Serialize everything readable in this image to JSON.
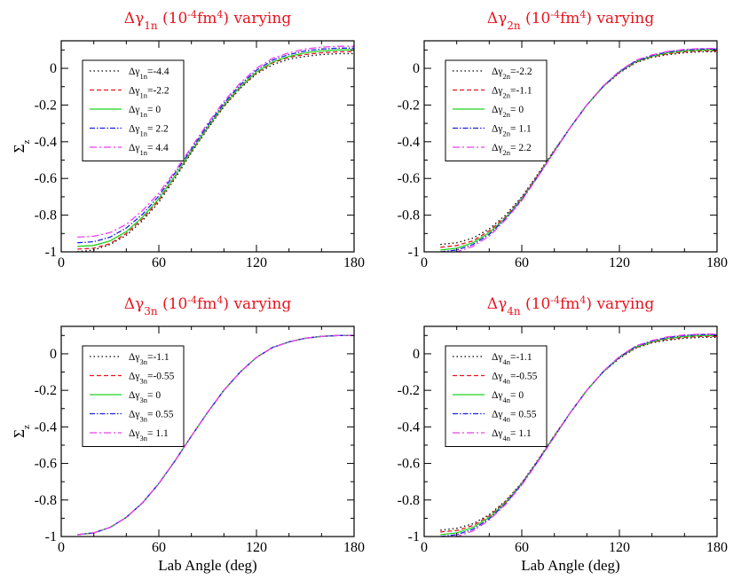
{
  "figure_title": "Sigma_z versus lab angle for varying Delta-gamma parameters",
  "x_axis_label": "Lab Angle (deg)",
  "y_axis_label_main": "Σ",
  "y_axis_label_sub": "z",
  "title_suffix_units": "(10",
  "title_exp": "-4",
  "title_unit": "fm",
  "title_exp2": "4",
  "title_varying": ") varying",
  "chart_data": [
    {
      "type": "line",
      "title": "Δγ1n (10^-4 fm^4) varying",
      "param_symbol": "Δγ",
      "param_sub": "1n",
      "xlim": [
        0,
        180
      ],
      "ylim": [
        -1,
        0.15
      ],
      "xticks": [
        0,
        60,
        120,
        180
      ],
      "yticks": [
        -1,
        -0.8,
        -0.6,
        -0.4,
        -0.2,
        0
      ],
      "ytick_labels": [
        "-1",
        "-0.8",
        "-0.6",
        "-0.4",
        "-0.2",
        "0"
      ],
      "ylabel": "Σz",
      "xlabel": "",
      "x": [
        10,
        20,
        30,
        40,
        50,
        60,
        70,
        80,
        90,
        100,
        110,
        120,
        130,
        140,
        150,
        160,
        170,
        180
      ],
      "series": [
        {
          "name": "Δγ1n=-4.4",
          "value_text": "=-4.4",
          "color": "#000000",
          "dash": "1.5,3",
          "values": [
            -0.999,
            -0.99,
            -0.96,
            -0.91,
            -0.83,
            -0.73,
            -0.6,
            -0.46,
            -0.33,
            -0.21,
            -0.11,
            -0.03,
            0.02,
            0.05,
            0.065,
            0.075,
            0.08,
            0.08
          ]
        },
        {
          "name": "Δγ1n=-2.2",
          "value_text": "=-2.2",
          "color": "#e8141e",
          "dash": "5,3",
          "values": [
            -0.985,
            -0.98,
            -0.955,
            -0.9,
            -0.82,
            -0.72,
            -0.59,
            -0.455,
            -0.325,
            -0.205,
            -0.105,
            -0.025,
            0.03,
            0.06,
            0.075,
            0.085,
            0.09,
            0.09
          ]
        },
        {
          "name": "Δγ1n= 0",
          "value_text": "= 0",
          "color": "#1ed21e",
          "dash": "",
          "values": [
            -0.97,
            -0.965,
            -0.94,
            -0.89,
            -0.81,
            -0.71,
            -0.585,
            -0.45,
            -0.32,
            -0.2,
            -0.1,
            -0.02,
            0.035,
            0.065,
            0.085,
            0.095,
            0.1,
            0.1
          ]
        },
        {
          "name": "Δγ1n= 2.2",
          "value_text": "= 2.2",
          "color": "#1e1ee8",
          "dash": "6,2,1.5,2",
          "values": [
            -0.95,
            -0.945,
            -0.92,
            -0.87,
            -0.795,
            -0.695,
            -0.57,
            -0.44,
            -0.31,
            -0.19,
            -0.09,
            -0.01,
            0.045,
            0.075,
            0.095,
            0.105,
            0.11,
            0.11
          ]
        },
        {
          "name": "Δγ1n= 4.4",
          "value_text": "= 4.4",
          "color": "#ee3eee",
          "dash": "8,3,2,3",
          "values": [
            -0.92,
            -0.915,
            -0.895,
            -0.85,
            -0.775,
            -0.68,
            -0.56,
            -0.43,
            -0.3,
            -0.18,
            -0.08,
            0.0,
            0.055,
            0.085,
            0.105,
            0.115,
            0.12,
            0.12
          ]
        }
      ]
    },
    {
      "type": "line",
      "title": "Δγ2n (10^-4 fm^4) varying",
      "param_symbol": "Δγ",
      "param_sub": "2n",
      "xlim": [
        0,
        180
      ],
      "ylim": [
        -1,
        0.15
      ],
      "xticks": [
        0,
        60,
        120,
        180
      ],
      "yticks": [
        -1,
        -0.8,
        -0.6,
        -0.4,
        -0.2,
        0
      ],
      "ytick_labels": [
        "-1",
        "-0.8",
        "-0.6",
        "-0.4",
        "-0.2",
        "0"
      ],
      "ylabel": "",
      "xlabel": "",
      "x": [
        10,
        20,
        30,
        40,
        50,
        60,
        70,
        80,
        90,
        100,
        110,
        120,
        130,
        140,
        150,
        160,
        170,
        180
      ],
      "series": [
        {
          "name": "Δγ2n=-2.2",
          "value_text": "=-2.2",
          "color": "#000000",
          "dash": "1.5,3",
          "values": [
            -0.96,
            -0.95,
            -0.925,
            -0.875,
            -0.8,
            -0.7,
            -0.575,
            -0.445,
            -0.32,
            -0.2,
            -0.1,
            -0.025,
            0.03,
            0.06,
            0.075,
            0.085,
            0.09,
            0.09
          ]
        },
        {
          "name": "Δγ2n=-1.1",
          "value_text": "=-1.1",
          "color": "#e8141e",
          "dash": "5,3",
          "values": [
            -0.975,
            -0.965,
            -0.94,
            -0.885,
            -0.81,
            -0.705,
            -0.58,
            -0.447,
            -0.32,
            -0.2,
            -0.1,
            -0.022,
            0.033,
            0.063,
            0.08,
            0.09,
            0.095,
            0.095
          ]
        },
        {
          "name": "Δγ2n= 0",
          "value_text": "= 0",
          "color": "#1ed21e",
          "dash": "",
          "values": [
            -0.99,
            -0.98,
            -0.95,
            -0.895,
            -0.815,
            -0.71,
            -0.585,
            -0.45,
            -0.32,
            -0.2,
            -0.1,
            -0.02,
            0.036,
            0.066,
            0.085,
            0.095,
            0.1,
            0.1
          ]
        },
        {
          "name": "Δγ2n= 1.1",
          "value_text": "= 1.1",
          "color": "#1e1ee8",
          "dash": "6,2,1.5,2",
          "values": [
            -1.0,
            -0.99,
            -0.96,
            -0.905,
            -0.82,
            -0.715,
            -0.588,
            -0.452,
            -0.32,
            -0.2,
            -0.098,
            -0.018,
            0.04,
            0.07,
            0.09,
            0.1,
            0.105,
            0.105
          ]
        },
        {
          "name": "Δγ2n= 2.2",
          "value_text": "= 2.2",
          "color": "#ee3eee",
          "dash": "8,3,2,3",
          "values": [
            -1.0,
            -1.0,
            -0.97,
            -0.915,
            -0.825,
            -0.72,
            -0.59,
            -0.455,
            -0.32,
            -0.2,
            -0.096,
            -0.015,
            0.043,
            0.073,
            0.093,
            0.103,
            0.108,
            0.108
          ]
        }
      ]
    },
    {
      "type": "line",
      "title": "Δγ3n (10^-4 fm^4) varying",
      "param_symbol": "Δγ",
      "param_sub": "3n",
      "xlim": [
        0,
        180
      ],
      "ylim": [
        -1,
        0.15
      ],
      "xticks": [
        0,
        60,
        120,
        180
      ],
      "yticks": [
        -1,
        -0.8,
        -0.6,
        -0.4,
        -0.2,
        0
      ],
      "ytick_labels": [
        "-1",
        "-0.8",
        "-0.6",
        "-0.4",
        "-0.2",
        "0"
      ],
      "ylabel": "Σz",
      "xlabel": "Lab Angle (deg)",
      "x": [
        10,
        20,
        30,
        40,
        50,
        60,
        70,
        80,
        90,
        100,
        110,
        120,
        130,
        140,
        150,
        160,
        170,
        180
      ],
      "series": [
        {
          "name": "Δγ3n=-1.1",
          "value_text": "=-1.1",
          "color": "#000000",
          "dash": "1.5,3",
          "values": [
            -0.99,
            -0.98,
            -0.95,
            -0.895,
            -0.815,
            -0.71,
            -0.585,
            -0.45,
            -0.32,
            -0.2,
            -0.1,
            -0.02,
            0.035,
            0.065,
            0.085,
            0.095,
            0.1,
            0.1
          ]
        },
        {
          "name": "Δγ3n=-0.55",
          "value_text": "=-0.55",
          "color": "#e8141e",
          "dash": "5,3",
          "values": [
            -0.99,
            -0.98,
            -0.95,
            -0.895,
            -0.815,
            -0.71,
            -0.585,
            -0.45,
            -0.32,
            -0.2,
            -0.1,
            -0.02,
            0.035,
            0.065,
            0.085,
            0.095,
            0.1,
            0.1
          ]
        },
        {
          "name": "Δγ3n= 0",
          "value_text": "= 0",
          "color": "#1ed21e",
          "dash": "",
          "values": [
            -0.99,
            -0.98,
            -0.95,
            -0.895,
            -0.815,
            -0.71,
            -0.585,
            -0.45,
            -0.32,
            -0.2,
            -0.1,
            -0.02,
            0.035,
            0.065,
            0.085,
            0.095,
            0.1,
            0.1
          ]
        },
        {
          "name": "Δγ3n= 0.55",
          "value_text": "= 0.55",
          "color": "#1e1ee8",
          "dash": "6,2,1.5,2",
          "values": [
            -0.99,
            -0.98,
            -0.95,
            -0.895,
            -0.815,
            -0.71,
            -0.585,
            -0.45,
            -0.32,
            -0.2,
            -0.1,
            -0.02,
            0.035,
            0.065,
            0.085,
            0.095,
            0.1,
            0.1
          ]
        },
        {
          "name": "Δγ3n= 1.1",
          "value_text": "= 1.1",
          "color": "#ee3eee",
          "dash": "8,3,2,3",
          "values": [
            -0.99,
            -0.98,
            -0.95,
            -0.895,
            -0.815,
            -0.71,
            -0.585,
            -0.45,
            -0.32,
            -0.2,
            -0.1,
            -0.02,
            0.035,
            0.065,
            0.085,
            0.095,
            0.1,
            0.1
          ]
        }
      ]
    },
    {
      "type": "line",
      "title": "Δγ4n (10^-4 fm^4) varying",
      "param_symbol": "Δγ",
      "param_sub": "4n",
      "xlim": [
        0,
        180
      ],
      "ylim": [
        -1,
        0.15
      ],
      "xticks": [
        0,
        60,
        120,
        180
      ],
      "yticks": [
        -1,
        -0.8,
        -0.6,
        -0.4,
        -0.2,
        0
      ],
      "ytick_labels": [
        "-1",
        "-0.8",
        "-0.6",
        "-0.4",
        "-0.2",
        "0"
      ],
      "ylabel": "",
      "xlabel": "Lab Angle (deg)",
      "x": [
        10,
        20,
        30,
        40,
        50,
        60,
        70,
        80,
        90,
        100,
        110,
        120,
        130,
        140,
        150,
        160,
        170,
        180
      ],
      "series": [
        {
          "name": "Δγ4n=-1.1",
          "value_text": "=-1.1",
          "color": "#000000",
          "dash": "1.5,3",
          "values": [
            -0.965,
            -0.955,
            -0.93,
            -0.88,
            -0.805,
            -0.705,
            -0.58,
            -0.447,
            -0.32,
            -0.2,
            -0.1,
            -0.025,
            0.03,
            0.06,
            0.075,
            0.085,
            0.09,
            0.09
          ]
        },
        {
          "name": "Δγ4n=-0.55",
          "value_text": "=-0.55",
          "color": "#e8141e",
          "dash": "5,3",
          "values": [
            -0.975,
            -0.967,
            -0.94,
            -0.887,
            -0.81,
            -0.708,
            -0.583,
            -0.448,
            -0.32,
            -0.2,
            -0.1,
            -0.022,
            0.033,
            0.063,
            0.08,
            0.09,
            0.095,
            0.095
          ]
        },
        {
          "name": "Δγ4n= 0",
          "value_text": "= 0",
          "color": "#1ed21e",
          "dash": "",
          "values": [
            -0.99,
            -0.98,
            -0.95,
            -0.895,
            -0.815,
            -0.71,
            -0.585,
            -0.45,
            -0.32,
            -0.2,
            -0.1,
            -0.02,
            0.036,
            0.066,
            0.085,
            0.095,
            0.1,
            0.1
          ]
        },
        {
          "name": "Δγ4n= 0.55",
          "value_text": "= 0.55",
          "color": "#1e1ee8",
          "dash": "6,2,1.5,2",
          "values": [
            -1.0,
            -0.99,
            -0.96,
            -0.903,
            -0.82,
            -0.713,
            -0.587,
            -0.452,
            -0.32,
            -0.2,
            -0.098,
            -0.018,
            0.04,
            0.07,
            0.09,
            0.1,
            0.105,
            0.105
          ]
        },
        {
          "name": "Δγ4n= 1.1",
          "value_text": "= 1.1",
          "color": "#ee3eee",
          "dash": "8,3,2,3",
          "values": [
            -1.0,
            -1.0,
            -0.97,
            -0.91,
            -0.825,
            -0.718,
            -0.59,
            -0.455,
            -0.32,
            -0.2,
            -0.096,
            -0.015,
            0.043,
            0.073,
            0.093,
            0.103,
            0.108,
            0.108
          ]
        }
      ]
    }
  ]
}
